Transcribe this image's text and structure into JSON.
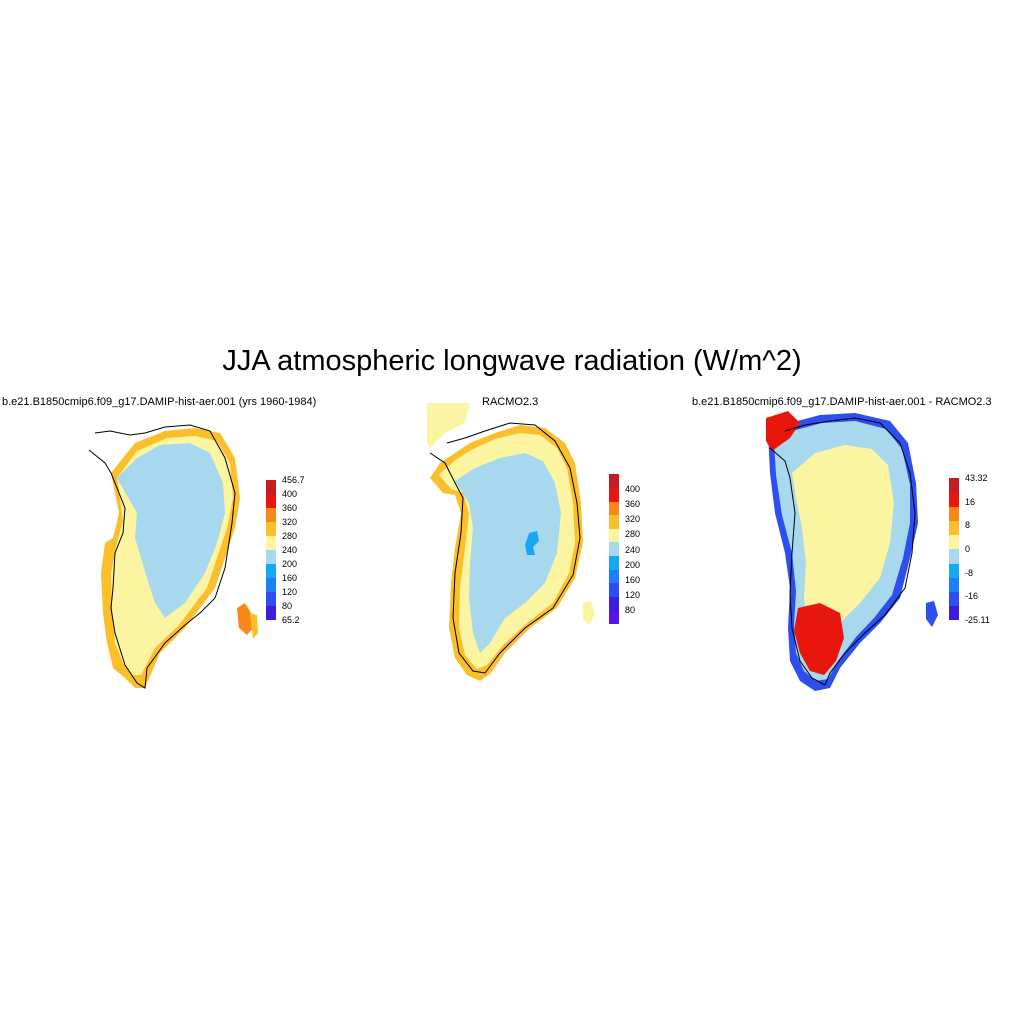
{
  "title": "JJA atmospheric longwave radiation (W/m^2)",
  "panels": [
    {
      "title": "b.e21.B1850cmip6.f09_g17.DAMIP-hist-aer.001 (yrs 1960-1984)",
      "colorbar": {
        "colors": [
          "#3b1ddb",
          "#2d4ff0",
          "#1d7ff6",
          "#17a8f2",
          "#a8d8ee",
          "#fbf4a0",
          "#fbbf2c",
          "#f7891a",
          "#e8170d",
          "#c41e22"
        ],
        "labels": [
          "65.2",
          "80",
          "120",
          "160",
          "200",
          "240",
          "280",
          "320",
          "360",
          "400",
          "456.7"
        ]
      },
      "fields": {
        "interior": "#a8d8ee",
        "margin": "#fbf4a0",
        "edge": "#fbbf2c",
        "accent": "#f7891a"
      }
    },
    {
      "title": "RACMO2.3",
      "colorbar": {
        "colors": [
          "#5a13e6",
          "#3b1ddb",
          "#2d4ff0",
          "#1d7ff6",
          "#17a8f2",
          "#a8d8ee",
          "#fbf4a0",
          "#fbbf2c",
          "#f7891a",
          "#e8170d",
          "#c41e22"
        ],
        "labels": [
          "80",
          "120",
          "160",
          "200",
          "240",
          "280",
          "320",
          "360",
          "400"
        ]
      },
      "fields": {
        "interior": "#a8d8ee",
        "margin": "#fbf4a0",
        "edge": "#fbbf2c",
        "accent": "#17a8f2"
      }
    },
    {
      "title": "b.e21.B1850cmip6.f09_g17.DAMIP-hist-aer.001 - RACMO2.3",
      "colorbar": {
        "colors": [
          "#3b1ddb",
          "#2d4ff0",
          "#1d7ff6",
          "#17a8f2",
          "#a8d8ee",
          "#fbf4a0",
          "#fbbf2c",
          "#f7891a",
          "#e8170d",
          "#c41e22"
        ],
        "labels": [
          "-25.11",
          "-16",
          "-8",
          "0",
          "8",
          "16",
          "43.32"
        ]
      },
      "fields": {
        "interior": "#fbf4a0",
        "margin": "#a8d8ee",
        "edge": "#2d4ff0",
        "accent": "#e8170d"
      }
    }
  ]
}
